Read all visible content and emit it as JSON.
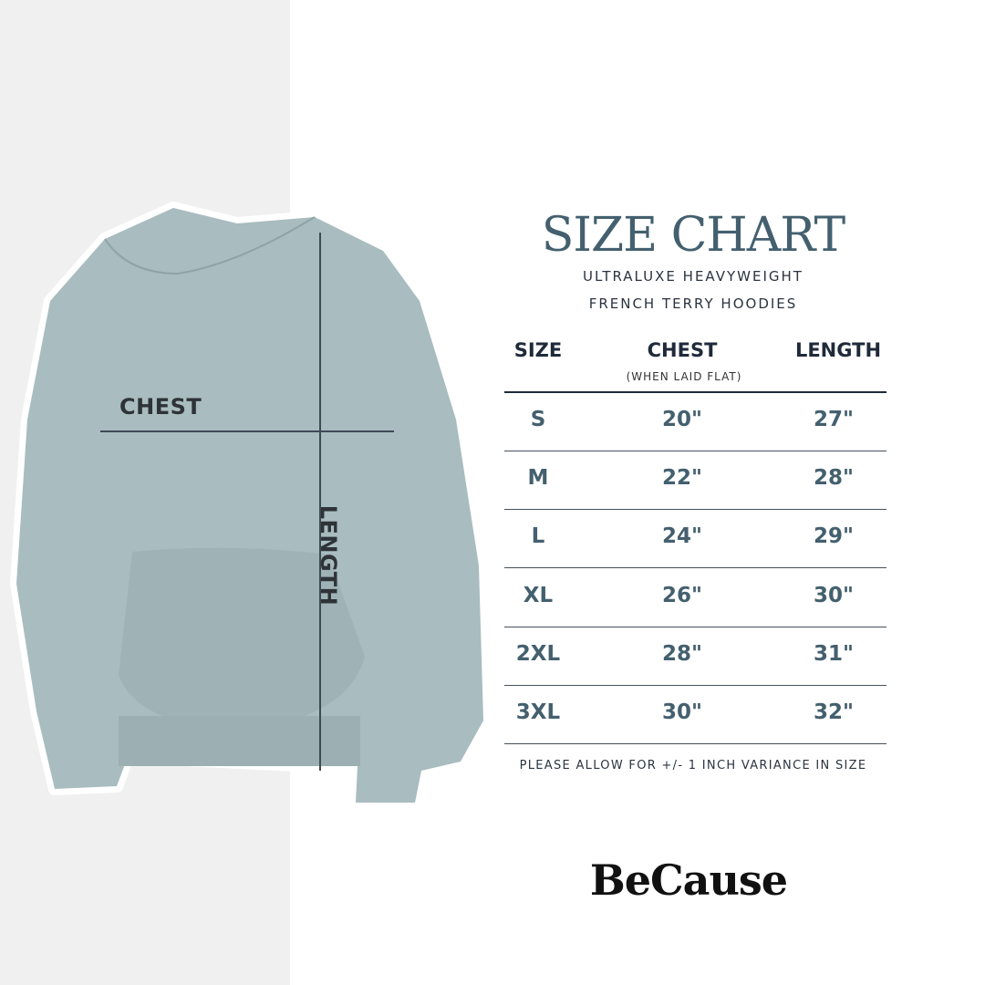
{
  "colors": {
    "hoodie": "#a9bcbf",
    "title": "#44606f",
    "header": "#1f2a3a",
    "panel": "#f0f0f0"
  },
  "diagram": {
    "chest_label": "CHEST",
    "length_label": "LENGTH"
  },
  "header": {
    "title": "SIZE CHART",
    "subtitle_line1": "ULTRALUXE HEAVYWEIGHT",
    "subtitle_line2": "FRENCH TERRY HOODIES"
  },
  "table": {
    "columns": [
      "SIZE",
      "CHEST",
      "LENGTH"
    ],
    "chest_note": "(WHEN LAID FLAT)",
    "rows": [
      [
        "S",
        "20\"",
        "27\""
      ],
      [
        "M",
        "22\"",
        "28\""
      ],
      [
        "L",
        "24\"",
        "29\""
      ],
      [
        "XL",
        "26\"",
        "30\""
      ],
      [
        "2XL",
        "28\"",
        "31\""
      ],
      [
        "3XL",
        "30\"",
        "32\""
      ]
    ]
  },
  "footnote": "PLEASE ALLOW FOR +/- 1 INCH VARIANCE IN SIZE",
  "brand": "BeCause"
}
